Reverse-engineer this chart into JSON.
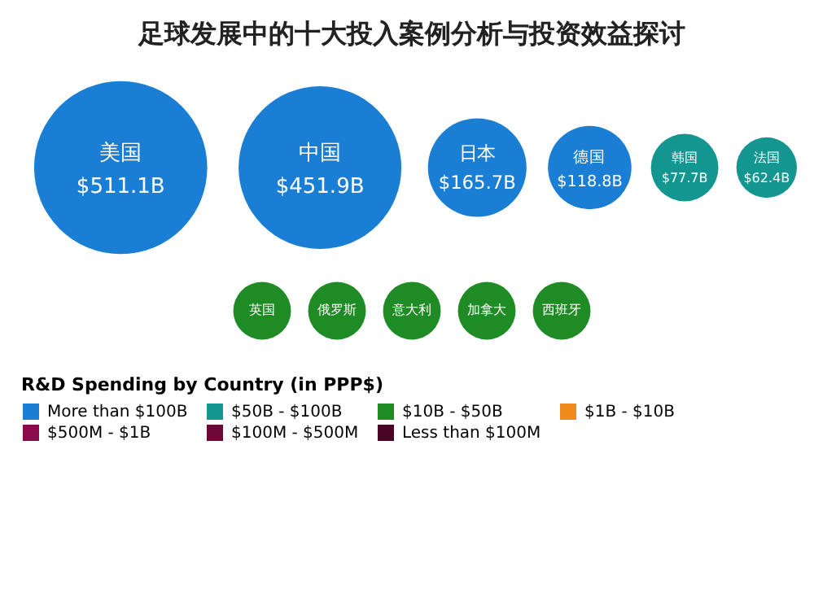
{
  "chart_data": {
    "type": "other",
    "title": "足球发展中的十大投入案例分析与投资效益探讨",
    "categories": [
      "美国",
      "中国",
      "日本",
      "德国",
      "韩国",
      "法国",
      "英国",
      "俄罗斯",
      "意大利",
      "加拿大",
      "西班牙"
    ],
    "colors": [
      "#1a7fd4",
      "#1a7fd4",
      "#1a7fd4",
      "#1a7fd4",
      "#139690",
      "#139690",
      "#1e8b24",
      "#1e8b24",
      "#1e8b24",
      "#1e8b24",
      "#1e8b24"
    ],
    "legend_title": "R&D Spending by Country (in PPP$)",
    "legend": "bottom",
    "series": [
      {
        "name": "More than $100B",
        "color": "#1a7fd4",
        "values": [
          511.1,
          451.9,
          165.7,
          118.8,
          null,
          null,
          null,
          null,
          null,
          null,
          null
        ],
        "value_labels": [
          "$511.1B",
          "$451.9B",
          "$165.7B",
          "$118.8B",
          null,
          null,
          null,
          null,
          null,
          null,
          null
        ]
      },
      {
        "name": "$50B - $100B",
        "color": "#139690",
        "values": [
          null,
          null,
          null,
          null,
          77.7,
          62.4,
          null,
          null,
          null,
          null,
          null
        ],
        "value_labels": [
          null,
          null,
          null,
          null,
          "$77.7B",
          "$62.4B",
          null,
          null,
          null,
          null,
          null
        ]
      },
      {
        "name": "$10B - $50B",
        "color": "#1e8b24",
        "values": [
          null,
          null,
          null,
          null,
          null,
          null,
          null,
          null,
          null,
          null,
          null
        ]
      },
      {
        "name": "$1B - $10B",
        "color": "#f08a1c",
        "values": [
          null,
          null,
          null,
          null,
          null,
          null,
          null,
          null,
          null,
          null,
          null
        ]
      },
      {
        "name": "$500M - $1B",
        "color": "#8b0a4a",
        "values": [
          null,
          null,
          null,
          null,
          null,
          null,
          null,
          null,
          null,
          null,
          null
        ]
      },
      {
        "name": "$100M - $500M",
        "color": "#6e0638",
        "values": [
          null,
          null,
          null,
          null,
          null,
          null,
          null,
          null,
          null,
          null,
          null
        ]
      },
      {
        "name": "Less than $100M",
        "color": "#4a0426",
        "values": [
          null,
          null,
          null,
          null,
          null,
          null,
          null,
          null,
          null,
          null,
          null
        ]
      }
    ]
  }
}
